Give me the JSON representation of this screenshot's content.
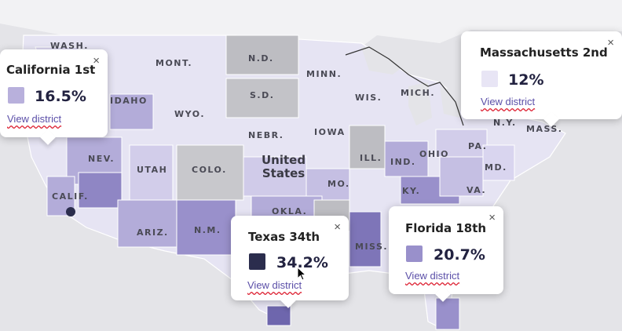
{
  "map": {
    "country_label_line1": "United",
    "country_label_line2": "States",
    "state_labels": [
      "WASH.",
      "MONT.",
      "N.D.",
      "MINN.",
      "WIS.",
      "MICH.",
      "S.D.",
      "IDAHO",
      "WYO.",
      "NEBR.",
      "IOWA",
      "NEV.",
      "UTAH",
      "COLO.",
      "ILL.",
      "IND.",
      "OHIO",
      "PA.",
      "MD.",
      "VA.",
      "KY.",
      "MO.",
      "CALIF.",
      "ARIZ.",
      "N.M.",
      "OKLA.",
      "MISS.",
      "N.Y.",
      "MASS."
    ],
    "colors": {
      "land": "#ececf6",
      "water": "#e2e2e6",
      "gray": "#bdbdc2",
      "light": "#d9d5ef",
      "mid": "#b3acd9",
      "dark": "#8f86c4",
      "darkest": "#2b2d4d"
    }
  },
  "popups": [
    {
      "id": "california",
      "title": "California 1st",
      "value": "16.5%",
      "link": "View district",
      "close": "×",
      "swatch_color": "#b8b0dc"
    },
    {
      "id": "massachusetts",
      "title": "Massachusetts 2nd",
      "value": "12%",
      "link": "View district",
      "close": "×",
      "swatch_color": "#e8e5f5"
    },
    {
      "id": "texas",
      "title": "Texas 34th",
      "value": "34.2%",
      "link": "View district",
      "close": "×",
      "swatch_color": "#2b2d4d"
    },
    {
      "id": "florida",
      "title": "Florida 18th",
      "value": "20.7%",
      "link": "View district",
      "close": "×",
      "swatch_color": "#9990cb"
    }
  ]
}
